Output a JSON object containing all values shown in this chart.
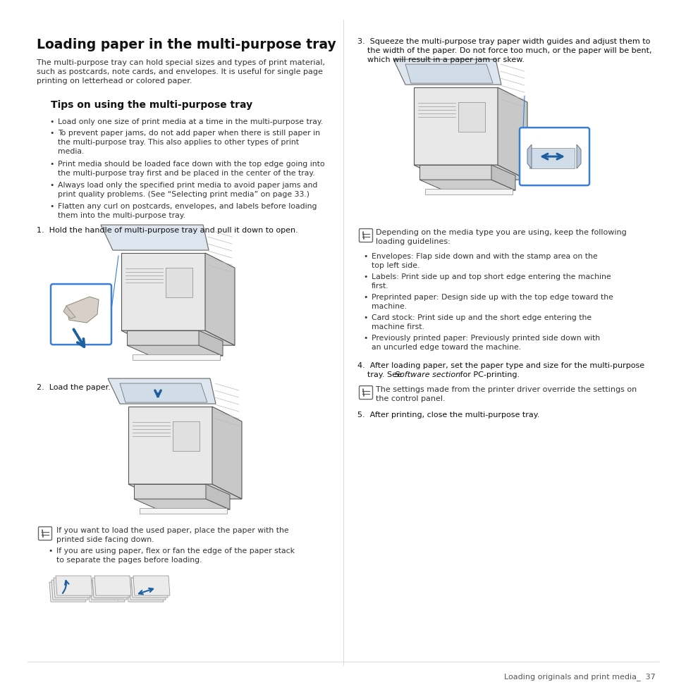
{
  "bg_color": "#ffffff",
  "page_width": 9.54,
  "page_height": 9.54,
  "text_color": "#333333",
  "title_color": "#111111",
  "footer_text": "Loading originals and print media_  37"
}
